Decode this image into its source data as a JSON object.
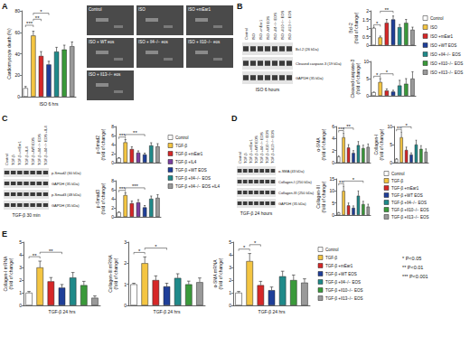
{
  "chart_data": [
    {
      "type": "bar",
      "ylabel": "Cardiomyocyte death (%)",
      "categories": [
        "Control",
        "ISO",
        "ISO +mEar1",
        "ISO +WT EOS",
        "ISO +Il4−/− EOS",
        "ISO +Il10−/− EOS",
        "ISO +Il13−/− EOS"
      ],
      "values": [
        8,
        57,
        38,
        30,
        42,
        44,
        47
      ],
      "errors": [
        1.5,
        4,
        4,
        3,
        4,
        4,
        4
      ],
      "colors": [
        "#ffffff",
        "#f4c542",
        "#d62728",
        "#1f3f99",
        "#1f8a8a",
        "#3a9a3a",
        "#9a9a9a"
      ],
      "ylim": [
        0,
        80
      ],
      "yticks": [
        0,
        20,
        40,
        60,
        80
      ],
      "grid": false,
      "tick_labels": "y",
      "significance": [
        {
          "between": [
            "Control",
            "ISO"
          ],
          "label": "***"
        },
        {
          "between": [
            "ISO",
            "ISO +mEar1"
          ],
          "label": "**"
        },
        {
          "between": [
            "ISO",
            "ISO +WT EOS"
          ],
          "label": "*"
        }
      ]
    },
    {
      "type": "bar",
      "ylabel": "Bcl-2 (fold of change)",
      "categories": [
        "Control",
        "ISO",
        "ISO +mEar1",
        "ISO +WT EOS",
        "ISO +Il4−/− EOS",
        "ISO +Il10−/− EOS",
        "ISO +Il13−/− EOS"
      ],
      "values": [
        1,
        0.45,
        1.3,
        1.5,
        1.05,
        1.3,
        0.9
      ],
      "errors": [
        0.05,
        0.08,
        0.2,
        0.2,
        0.15,
        0.2,
        0.15
      ],
      "colors": [
        "#ffffff",
        "#f4c542",
        "#d62728",
        "#1f3f99",
        "#1f8a8a",
        "#3a9a3a",
        "#9a9a9a"
      ],
      "ylim": [
        0,
        2
      ],
      "yticks": [
        0,
        0.5,
        1,
        1.5,
        2
      ],
      "grid": false,
      "tick_labels": "y",
      "significance": [
        {
          "between": [
            "Control",
            "ISO"
          ],
          "label": "*"
        },
        {
          "between": [
            "ISO",
            "ISO +WT EOS"
          ],
          "label": "**"
        }
      ]
    },
    {
      "type": "bar",
      "ylabel": "Cleaved caspase-3 (fold of change)",
      "categories": [
        "Control",
        "ISO",
        "ISO +mEar1",
        "ISO +WT EOS",
        "ISO +Il4−/− EOS",
        "ISO +Il10−/− EOS",
        "ISO +Il13−/− EOS"
      ],
      "values": [
        1,
        4,
        1.5,
        1.2,
        3,
        3.5,
        5
      ],
      "errors": [
        0.1,
        1,
        0.5,
        0.4,
        1.5,
        1.5,
        2
      ],
      "colors": [
        "#ffffff",
        "#f4c542",
        "#d62728",
        "#1f3f99",
        "#1f8a8a",
        "#3a9a3a",
        "#9a9a9a"
      ],
      "ylim": [
        0,
        10
      ],
      "yticks": [
        0,
        5,
        10
      ],
      "grid": false,
      "tick_labels": "y",
      "significance": [
        {
          "between": [
            "Control",
            "ISO"
          ],
          "label": "*"
        },
        {
          "between": [
            "ISO",
            "ISO +WT EOS"
          ],
          "label": "*"
        }
      ]
    },
    {
      "type": "bar",
      "ylabel": "p-Smad2 (fold of change)",
      "categories": [
        "Control",
        "TGF-β",
        "TGF-β +mEar1",
        "TGF-β +IL4",
        "TGF-β +WT EOS",
        "TGF-β +Il4−/− EOS",
        "TGF-β +Il4−/− EOS +IL4"
      ],
      "values": [
        1,
        4.5,
        3,
        2.2,
        1.8,
        3.8,
        3.6
      ],
      "errors": [
        0.1,
        0.6,
        0.5,
        0.4,
        0.3,
        0.6,
        0.6
      ],
      "colors": [
        "#ffffff",
        "#f4c542",
        "#d62728",
        "#7b3fa0",
        "#1f3f99",
        "#1f8a8a",
        "#9a9a9a"
      ],
      "ylim": [
        0,
        8
      ],
      "yticks": [
        0,
        2,
        4,
        6,
        8
      ],
      "grid": false,
      "tick_labels": "y",
      "significance": [
        {
          "between": [
            "Control",
            "TGF-β"
          ],
          "label": "***"
        },
        {
          "between": [
            "TGF-β",
            "TGF-β +WT EOS"
          ],
          "label": "**"
        }
      ]
    },
    {
      "type": "bar",
      "ylabel": "p-Smad3 (fold of change)",
      "categories": [
        "Control",
        "TGF-β",
        "TGF-β +mEar1",
        "TGF-β +IL4",
        "TGF-β +WT EOS",
        "TGF-β +Il4−/− EOS",
        "TGF-β +Il4−/− EOS +IL4"
      ],
      "values": [
        1,
        4.8,
        3,
        3.2,
        2.1,
        4,
        4.2
      ],
      "errors": [
        0.1,
        0.5,
        0.5,
        0.6,
        0.4,
        0.6,
        0.7
      ],
      "colors": [
        "#ffffff",
        "#f4c542",
        "#d62728",
        "#7b3fa0",
        "#1f3f99",
        "#1f8a8a",
        "#9a9a9a"
      ],
      "ylim": [
        0,
        8
      ],
      "yticks": [
        0,
        2,
        4,
        6,
        8
      ],
      "grid": false,
      "tick_labels": "y",
      "significance": [
        {
          "between": [
            "Control",
            "TGF-β"
          ],
          "label": "***"
        },
        {
          "between": [
            "TGF-β",
            "TGF-β +WT EOS"
          ],
          "label": "***"
        }
      ]
    },
    {
      "type": "bar",
      "ylabel": "α-SMA (fold of change)",
      "categories": [
        "Control",
        "TGF-β",
        "TGF-β +mEar1",
        "TGF-β +WT EOS",
        "TGF-β +Il4−/− EOS",
        "TGF-β +Il10−/− EOS",
        "TGF-β +Il13−/− EOS"
      ],
      "values": [
        1,
        4.2,
        2.5,
        1.6,
        2.9,
        2.4,
        2.6
      ],
      "errors": [
        0.1,
        0.7,
        0.5,
        0.4,
        0.6,
        0.5,
        0.5
      ],
      "colors": [
        "#ffffff",
        "#f4c542",
        "#d62728",
        "#1f3f99",
        "#1f8a8a",
        "#3a9a3a",
        "#9a9a9a"
      ],
      "ylim": [
        0,
        6
      ],
      "yticks": [
        0,
        2,
        4,
        6
      ],
      "grid": false,
      "tick_labels": "y",
      "significance": [
        {
          "between": [
            "Control",
            "TGF-β"
          ],
          "label": "***"
        },
        {
          "between": [
            "TGF-β",
            "TGF-β +WT EOS"
          ],
          "label": "**"
        }
      ]
    },
    {
      "type": "bar",
      "ylabel": "Collagen-I (fold of change)",
      "categories": [
        "Control",
        "TGF-β",
        "TGF-β +mEar1",
        "TGF-β +WT EOS",
        "TGF-β +Il4−/− EOS",
        "TGF-β +Il10−/− EOS",
        "TGF-β +Il13−/− EOS"
      ],
      "values": [
        1,
        7,
        3.5,
        2.2,
        5,
        3.8,
        3
      ],
      "errors": [
        0.1,
        1.5,
        0.8,
        0.5,
        1.2,
        0.9,
        0.8
      ],
      "colors": [
        "#ffffff",
        "#f4c542",
        "#d62728",
        "#1f3f99",
        "#1f8a8a",
        "#3a9a3a",
        "#9a9a9a"
      ],
      "ylim": [
        0,
        10
      ],
      "yticks": [
        0,
        5,
        10
      ],
      "grid": false,
      "tick_labels": "y",
      "significance": [
        {
          "between": [
            "Control",
            "TGF-β"
          ],
          "label": "**"
        },
        {
          "between": [
            "TGF-β",
            "TGF-β +WT EOS"
          ],
          "label": "*"
        }
      ]
    },
    {
      "type": "bar",
      "ylabel": "Collagen-III (fold of change)",
      "categories": [
        "Control",
        "TGF-β",
        "TGF-β +mEar1",
        "TGF-β +WT EOS",
        "TGF-β +Il4−/− EOS",
        "TGF-β +Il10−/− EOS",
        "TGF-β +Il13−/− EOS"
      ],
      "values": [
        1,
        10,
        4,
        3,
        8,
        4.5,
        3.5
      ],
      "errors": [
        0.1,
        2,
        1,
        0.8,
        2,
        1.2,
        1
      ],
      "colors": [
        "#ffffff",
        "#f4c542",
        "#d62728",
        "#1f3f99",
        "#1f8a8a",
        "#3a9a3a",
        "#9a9a9a"
      ],
      "ylim": [
        0,
        15
      ],
      "yticks": [
        0,
        5,
        10,
        15
      ],
      "grid": false,
      "tick_labels": "y",
      "significance": [
        {
          "between": [
            "Control",
            "TGF-β"
          ],
          "label": "**"
        },
        {
          "between": [
            "TGF-β",
            "TGF-β +Il10−/− EOS"
          ],
          "label": "*"
        }
      ]
    },
    {
      "type": "bar",
      "ylabel": "Collagen-I mRNA (fold of change)",
      "categories": [
        "Control",
        "TGF-β",
        "TGF-β +mEar1",
        "TGF-β +WT EOS",
        "TGF-β +Il4−/− EOS",
        "TGF-β +Il10−/− EOS",
        "TGF-β +Il13−/− EOS"
      ],
      "values": [
        1,
        3,
        1.9,
        1.4,
        2.2,
        1.6,
        0.6
      ],
      "errors": [
        0.1,
        0.5,
        0.3,
        0.25,
        0.4,
        0.3,
        0.15
      ],
      "colors": [
        "#ffffff",
        "#f4c542",
        "#d62728",
        "#1f3f99",
        "#1f8a8a",
        "#3a9a3a",
        "#9a9a9a"
      ],
      "ylim": [
        0,
        5
      ],
      "yticks": [
        0,
        1,
        2,
        3,
        4,
        5
      ],
      "grid": false,
      "tick_labels": "y",
      "significance": [
        {
          "between": [
            "Control",
            "TGF-β"
          ],
          "label": "**"
        },
        {
          "between": [
            "TGF-β",
            "TGF-β +WT EOS"
          ],
          "label": "**"
        }
      ]
    },
    {
      "type": "bar",
      "ylabel": "Collagen-III mRNA (fold of change)",
      "categories": [
        "Control",
        "TGF-β",
        "TGF-β +mEar1",
        "TGF-β +WT EOS",
        "TGF-β +Il4−/− EOS",
        "TGF-β +Il10−/− EOS",
        "TGF-β +Il13−/− EOS"
      ],
      "values": [
        1,
        2,
        1.2,
        0.9,
        1.3,
        1,
        1.1
      ],
      "errors": [
        0.05,
        0.3,
        0.2,
        0.15,
        0.2,
        0.15,
        0.2
      ],
      "colors": [
        "#ffffff",
        "#f4c542",
        "#d62728",
        "#1f3f99",
        "#1f8a8a",
        "#3a9a3a",
        "#9a9a9a"
      ],
      "ylim": [
        0,
        3
      ],
      "yticks": [
        0,
        1,
        2,
        3
      ],
      "grid": false,
      "tick_labels": "y",
      "significance": [
        {
          "between": [
            "Control",
            "TGF-β"
          ],
          "label": "*"
        },
        {
          "between": [
            "TGF-β",
            "TGF-β +WT EOS"
          ],
          "label": "*"
        }
      ]
    },
    {
      "type": "bar",
      "ylabel": "α-SMA mRNA (fold of change)",
      "categories": [
        "Control",
        "TGF-β",
        "TGF-β +mEar1",
        "TGF-β +WT EOS",
        "TGF-β +Il4−/− EOS",
        "TGF-β +Il10−/− EOS",
        "TGF-β +Il13−/− EOS"
      ],
      "values": [
        1,
        3.5,
        1.6,
        1.2,
        2.3,
        2,
        1.8
      ],
      "errors": [
        0.1,
        0.6,
        0.3,
        0.25,
        0.4,
        0.4,
        0.3
      ],
      "colors": [
        "#ffffff",
        "#f4c542",
        "#d62728",
        "#1f3f99",
        "#1f8a8a",
        "#3a9a3a",
        "#9a9a9a"
      ],
      "ylim": [
        0,
        5
      ],
      "yticks": [
        0,
        1,
        2,
        3,
        4,
        5
      ],
      "grid": false,
      "tick_labels": "y",
      "significance": [
        {
          "between": [
            "Control",
            "TGF-β"
          ],
          "label": "*"
        },
        {
          "between": [
            "TGF-β",
            "TGF-β +mEar1"
          ],
          "label": "*"
        }
      ]
    }
  ],
  "panels": {
    "A": {
      "letter": "A",
      "caption": "ISO 6 hrs",
      "images": [
        "Control",
        "ISO",
        "ISO +mEar1",
        "ISO + WT eos",
        "ISO + Il4−/− eos",
        "ISO + Il10−/− eos",
        "ISO + Il13−/− eos"
      ]
    },
    "B": {
      "letter": "B",
      "caption": "ISO 6 hours",
      "lanes": [
        "Control",
        "ISO",
        "ISO +mEar1",
        "ISO +WT EOS",
        "ISO +Il4−/− EOS",
        "ISO +Il10−/− EOS",
        "ISO +Il13−/− EOS"
      ],
      "bands": [
        "Bcl-2 (26 kDa)",
        "Cleaved caspase-3 (19 kDa)",
        "GAPDH (35 kDa)"
      ]
    },
    "C": {
      "letter": "C",
      "caption": "TGF-β 30 min",
      "lanes": [
        "Control",
        "TGF-β",
        "TGF-β +mEar1",
        "TGF-β +IL4",
        "TGF-β +WT EOS",
        "TGF-β +Il4−/− EOS",
        "TGF-β +Il4−/− EOS +IL4"
      ],
      "bands": [
        "p-Smad2 (60 kDa)",
        "GAPDH (35 kDa)",
        "p-Smad3 (48 kDa)",
        "GAPDH (35 kDa)"
      ]
    },
    "D": {
      "letter": "D",
      "caption": "TGF-β 24 hours",
      "lanes": [
        "Control",
        "TGF-β",
        "TGF-β +mEar1",
        "TGF-β +WT EOS",
        "TGF-β +Il4−/− EOS",
        "TGF-β +Il10−/− EOS",
        "TGF-β +Il13−/− EOS"
      ],
      "bands": [
        "α-SMA (43 kDa)",
        "Collagen-I (250 kDa)",
        "Collagen-III (250 kDa)",
        "GAPDH (35 kDa)"
      ]
    },
    "E": {
      "letter": "E",
      "captions": [
        "TGF-β 24 hrs",
        "TGF-β 24 hrs",
        "TGF-β 24 hrs"
      ]
    }
  },
  "significance_key": [
    "* P<0.05",
    "** P<0.01",
    "*** P<0.001"
  ]
}
